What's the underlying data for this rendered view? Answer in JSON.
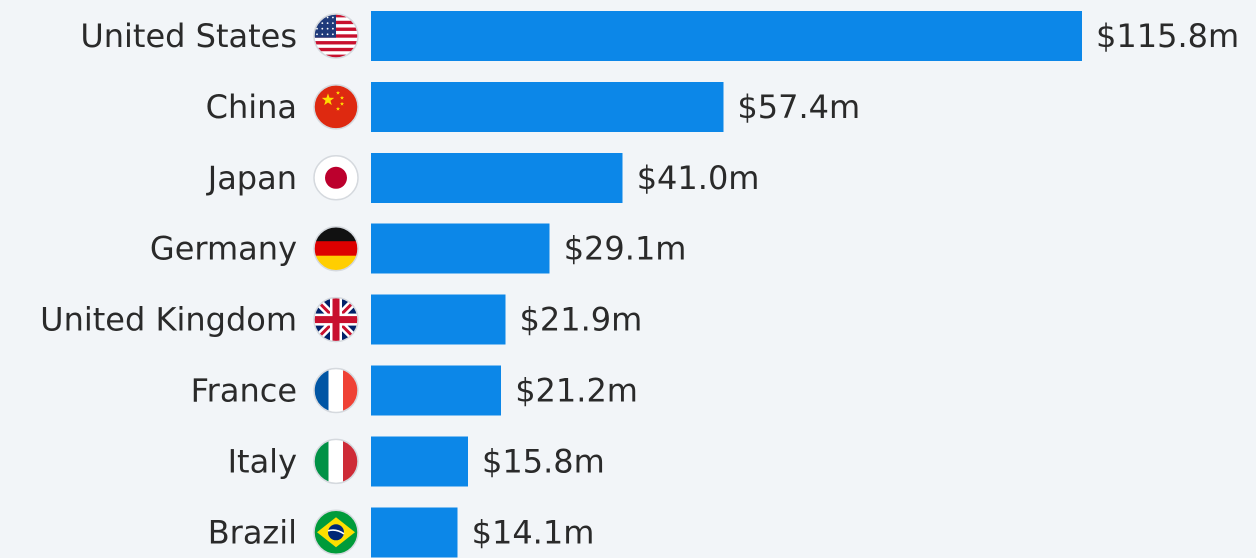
{
  "chart_data": {
    "type": "bar",
    "orientation": "horizontal",
    "title": "",
    "xlabel": "",
    "ylabel": "",
    "bar_color": "#0c87e8",
    "background_color": "#f2f5f8",
    "grid": false,
    "legend": "none",
    "categories": [
      "United States",
      "China",
      "Japan",
      "Germany",
      "United Kingdom",
      "France",
      "Italy",
      "Brazil"
    ],
    "values": [
      115.8,
      57.4,
      41.0,
      29.1,
      21.9,
      21.2,
      15.8,
      14.1
    ],
    "value_labels": [
      "$115.8m",
      "$57.4m",
      "$41.0m",
      "$29.1m",
      "$21.9m",
      "$21.2m",
      "$15.8m",
      "$14.1m"
    ],
    "flag_icons": [
      "us-flag-icon",
      "china-flag-icon",
      "japan-flag-icon",
      "germany-flag-icon",
      "uk-flag-icon",
      "france-flag-icon",
      "italy-flag-icon",
      "brazil-flag-icon"
    ],
    "xlim": [
      0,
      115.8
    ]
  }
}
